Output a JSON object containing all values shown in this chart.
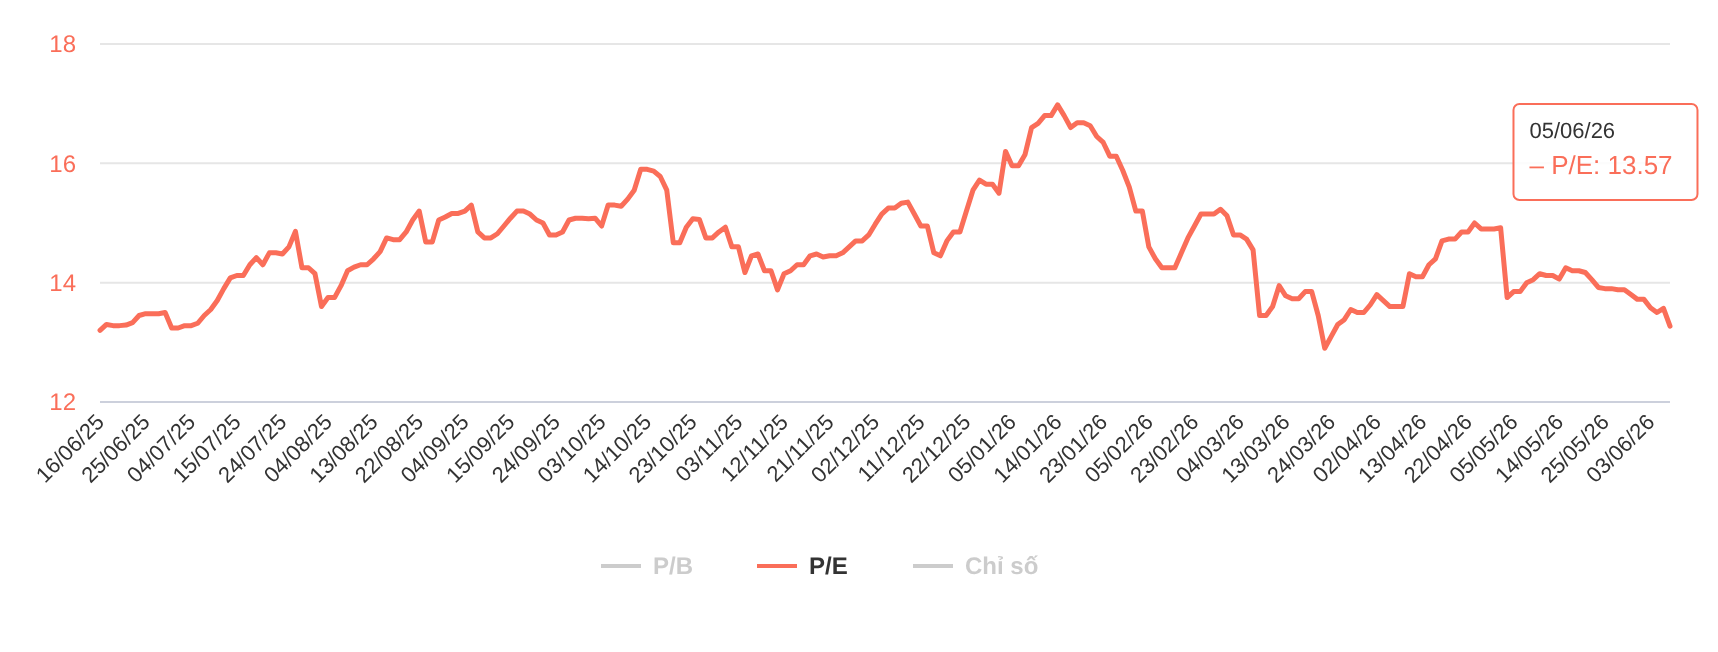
{
  "chart_data": {
    "type": "line",
    "ylim": [
      12,
      18
    ],
    "yticks": [
      12,
      14,
      16,
      18
    ],
    "grid": "y",
    "legend": "bottom",
    "line_style": "solid",
    "marker": "none",
    "categories": [
      "16/06/25",
      null,
      null,
      null,
      null,
      null,
      null,
      "25/06/25",
      null,
      null,
      null,
      null,
      null,
      null,
      "04/07/25",
      null,
      null,
      null,
      null,
      null,
      null,
      "15/07/25",
      null,
      null,
      null,
      null,
      null,
      null,
      "24/07/25",
      null,
      null,
      null,
      null,
      null,
      null,
      "04/08/25",
      null,
      null,
      null,
      null,
      null,
      null,
      "13/08/25",
      null,
      null,
      null,
      null,
      null,
      null,
      "22/08/25",
      null,
      null,
      null,
      null,
      null,
      null,
      "04/09/25",
      null,
      null,
      null,
      null,
      null,
      null,
      "15/09/25",
      null,
      null,
      null,
      null,
      null,
      null,
      "24/09/25",
      null,
      null,
      null,
      null,
      null,
      null,
      "03/10/25",
      null,
      null,
      null,
      null,
      null,
      null,
      "14/10/25",
      null,
      null,
      null,
      null,
      null,
      null,
      "23/10/25",
      null,
      null,
      null,
      null,
      null,
      null,
      "03/11/25",
      null,
      null,
      null,
      null,
      null,
      null,
      "12/11/25",
      null,
      null,
      null,
      null,
      null,
      null,
      "21/11/25",
      null,
      null,
      null,
      null,
      null,
      null,
      "02/12/25",
      null,
      null,
      null,
      null,
      null,
      null,
      "11/12/25",
      null,
      null,
      null,
      null,
      null,
      null,
      "22/12/25",
      null,
      null,
      null,
      null,
      null,
      null,
      "05/01/26",
      null,
      null,
      null,
      null,
      null,
      null,
      "14/01/26",
      null,
      null,
      null,
      null,
      null,
      null,
      "23/01/26",
      null,
      null,
      null,
      null,
      null,
      null,
      "05/02/26",
      null,
      null,
      null,
      null,
      null,
      null,
      "23/02/26",
      null,
      null,
      null,
      null,
      null,
      null,
      "04/03/26",
      null,
      null,
      null,
      null,
      null,
      null,
      "13/03/26",
      null,
      null,
      null,
      null,
      null,
      null,
      "24/03/26",
      null,
      null,
      null,
      null,
      null,
      null,
      "02/04/26",
      null,
      null,
      null,
      null,
      null,
      null,
      "13/04/26",
      null,
      null,
      null,
      null,
      null,
      null,
      "22/04/26",
      null,
      null,
      null,
      null,
      null,
      null,
      "05/05/26",
      null,
      null,
      null,
      null,
      null,
      null,
      "14/05/26",
      null,
      null,
      null,
      null,
      null,
      null,
      "25/05/26",
      null,
      null,
      null,
      null,
      null,
      null,
      "03/06/26",
      null,
      null,
      null
    ],
    "series": [
      {
        "name": "P/B",
        "color": "#cccccc",
        "values": [
          null,
          null,
          null,
          null,
          null,
          null,
          null,
          null,
          null,
          null,
          null,
          null,
          null,
          null,
          null,
          null,
          null,
          null,
          null,
          null,
          null,
          null,
          null,
          null,
          null,
          null,
          null,
          null,
          null,
          null,
          null,
          null,
          null,
          null,
          null,
          null,
          null,
          null,
          null,
          null,
          null,
          null,
          null,
          null,
          null,
          null,
          null,
          null,
          null,
          null,
          null,
          null,
          null,
          null,
          null,
          null,
          null,
          null,
          null,
          null,
          null,
          null,
          null,
          null,
          null,
          null,
          null,
          null,
          null,
          null,
          null,
          null,
          null,
          null,
          null,
          null,
          null,
          null,
          null,
          null,
          null,
          null,
          null,
          null,
          null,
          null,
          null,
          null,
          null,
          null,
          null,
          null,
          null,
          null,
          null,
          null,
          null,
          null,
          null,
          null,
          null,
          null,
          null,
          null,
          null,
          null,
          null,
          null,
          null,
          null,
          null,
          null,
          null,
          null,
          null,
          null,
          null,
          null,
          null,
          null,
          null,
          null,
          null,
          null,
          null,
          null,
          null,
          null,
          null,
          null,
          null,
          null,
          null,
          null,
          null,
          null,
          null,
          null,
          null,
          null,
          null,
          null,
          null,
          null,
          null,
          null,
          null,
          null,
          null,
          null,
          null,
          null,
          null,
          null,
          null,
          null,
          null,
          null,
          null,
          null,
          null,
          null,
          null,
          null,
          null,
          null,
          null,
          null,
          null,
          null,
          null,
          null,
          null,
          null,
          null,
          null,
          null,
          null,
          null,
          null,
          null,
          null,
          null,
          null,
          null,
          null,
          null,
          null,
          null,
          null,
          null,
          null,
          null,
          null,
          null,
          null,
          null,
          null,
          null,
          null,
          null,
          null,
          null,
          null,
          null,
          null,
          null,
          null,
          null,
          null,
          null,
          null,
          null,
          null,
          null,
          null,
          null,
          null,
          null,
          null,
          null,
          null,
          null,
          null,
          null,
          null,
          null,
          null,
          null,
          null,
          null,
          null,
          null,
          null,
          null,
          null,
          null,
          null,
          null,
          null,
          null,
          null
        ]
      },
      {
        "name": "P/E",
        "color": "#fa6e59",
        "values": [
          13.2,
          13.3,
          13.28,
          13.28,
          13.29,
          13.33,
          13.45,
          13.48,
          13.48,
          13.48,
          13.5,
          13.24,
          13.24,
          13.28,
          13.28,
          13.32,
          13.45,
          13.55,
          13.7,
          13.9,
          14.08,
          14.12,
          14.12,
          14.3,
          14.42,
          14.3,
          14.5,
          14.5,
          14.48,
          14.6,
          14.86,
          14.25,
          14.25,
          14.15,
          13.6,
          13.75,
          13.75,
          13.95,
          14.2,
          14.26,
          14.3,
          14.3,
          14.4,
          14.52,
          14.75,
          14.72,
          14.72,
          14.85,
          15.05,
          15.2,
          14.68,
          14.68,
          15.05,
          15.1,
          15.16,
          15.16,
          15.2,
          15.3,
          14.85,
          14.75,
          14.75,
          14.82,
          14.95,
          15.08,
          15.2,
          15.2,
          15.15,
          15.05,
          15.0,
          14.8,
          14.8,
          14.85,
          15.05,
          15.08,
          15.08,
          15.07,
          15.08,
          14.95,
          15.3,
          15.3,
          15.28,
          15.4,
          15.55,
          15.9,
          15.9,
          15.87,
          15.78,
          15.55,
          14.67,
          14.67,
          14.93,
          15.07,
          15.06,
          14.75,
          14.75,
          14.85,
          14.93,
          14.6,
          14.6,
          14.17,
          14.45,
          14.48,
          14.2,
          14.2,
          13.88,
          14.15,
          14.2,
          14.3,
          14.3,
          14.45,
          14.48,
          14.43,
          14.45,
          14.45,
          14.5,
          14.6,
          14.7,
          14.7,
          14.8,
          14.98,
          15.15,
          15.25,
          15.25,
          15.33,
          15.35,
          15.15,
          14.95,
          14.95,
          14.5,
          14.45,
          14.7,
          14.85,
          14.85,
          15.2,
          15.55,
          15.72,
          15.65,
          15.65,
          15.5,
          16.2,
          15.96,
          15.96,
          16.15,
          16.6,
          16.67,
          16.8,
          16.8,
          16.98,
          16.8,
          16.6,
          16.68,
          16.68,
          16.63,
          16.45,
          16.35,
          16.12,
          16.12,
          15.88,
          15.6,
          15.2,
          15.2,
          14.6,
          14.4,
          14.25,
          14.25,
          14.25,
          14.5,
          14.75,
          14.95,
          15.15,
          15.15,
          15.15,
          15.23,
          15.12,
          14.8,
          14.8,
          14.73,
          14.55,
          13.45,
          13.45,
          13.6,
          13.95,
          13.78,
          13.73,
          13.73,
          13.85,
          13.85,
          13.45,
          12.9,
          13.1,
          13.3,
          13.38,
          13.55,
          13.5,
          13.5,
          13.63,
          13.8,
          13.7,
          13.6,
          13.6,
          13.6,
          14.15,
          14.1,
          14.1,
          14.3,
          14.4,
          14.7,
          14.73,
          14.73,
          14.85,
          14.85,
          15.0,
          14.9,
          14.9,
          14.9,
          14.92,
          13.75,
          13.85,
          13.85,
          14.0,
          14.05,
          14.15,
          14.12,
          14.12,
          14.06,
          14.25,
          14.2,
          14.2,
          14.17,
          14.05,
          13.92,
          13.9,
          13.9,
          13.88,
          13.88,
          13.8,
          13.72,
          13.72,
          13.58,
          13.5,
          13.57,
          13.27
        ]
      },
      {
        "name": "Chỉ số",
        "color": "#cccccc",
        "values": [
          null,
          null,
          null,
          null,
          null,
          null,
          null,
          null,
          null,
          null,
          null,
          null,
          null,
          null,
          null,
          null,
          null,
          null,
          null,
          null,
          null,
          null,
          null,
          null,
          null,
          null,
          null,
          null,
          null,
          null,
          null,
          null,
          null,
          null,
          null,
          null,
          null,
          null,
          null,
          null,
          null,
          null,
          null,
          null,
          null,
          null,
          null,
          null,
          null,
          null,
          null,
          null,
          null,
          null,
          null,
          null,
          null,
          null,
          null,
          null,
          null,
          null,
          null,
          null,
          null,
          null,
          null,
          null,
          null,
          null,
          null,
          null,
          null,
          null,
          null,
          null,
          null,
          null,
          null,
          null,
          null,
          null,
          null,
          null,
          null,
          null,
          null,
          null,
          null,
          null,
          null,
          null,
          null,
          null,
          null,
          null,
          null,
          null,
          null,
          null,
          null,
          null,
          null,
          null,
          null,
          null,
          null,
          null,
          null,
          null,
          null,
          null,
          null,
          null,
          null,
          null,
          null,
          null,
          null,
          null,
          null,
          null,
          null,
          null,
          null,
          null,
          null,
          null,
          null,
          null,
          null,
          null,
          null,
          null,
          null,
          null,
          null,
          null,
          null,
          null,
          null,
          null,
          null,
          null,
          null,
          null,
          null,
          null,
          null,
          null,
          null,
          null,
          null,
          null,
          null,
          null,
          null,
          null,
          null,
          null,
          null,
          null,
          null,
          null,
          null,
          null,
          null,
          null,
          null,
          null,
          null,
          null,
          null,
          null,
          null,
          null,
          null,
          null,
          null,
          null,
          null,
          null,
          null,
          null,
          null,
          null,
          null,
          null,
          null,
          null,
          null,
          null,
          null,
          null,
          null,
          null,
          null,
          null,
          null,
          null,
          null,
          null,
          null,
          null,
          null,
          null,
          null,
          null,
          null,
          null,
          null,
          null,
          null,
          null,
          null,
          null,
          null,
          null,
          null,
          null,
          null,
          null,
          null,
          null,
          null,
          null,
          null,
          null,
          null,
          null,
          null,
          null,
          null,
          null,
          null,
          null,
          null,
          null,
          null,
          null,
          null,
          null
        ]
      }
    ],
    "annotations": [
      "05/06/26",
      "– P/E: 13.57"
    ]
  }
}
